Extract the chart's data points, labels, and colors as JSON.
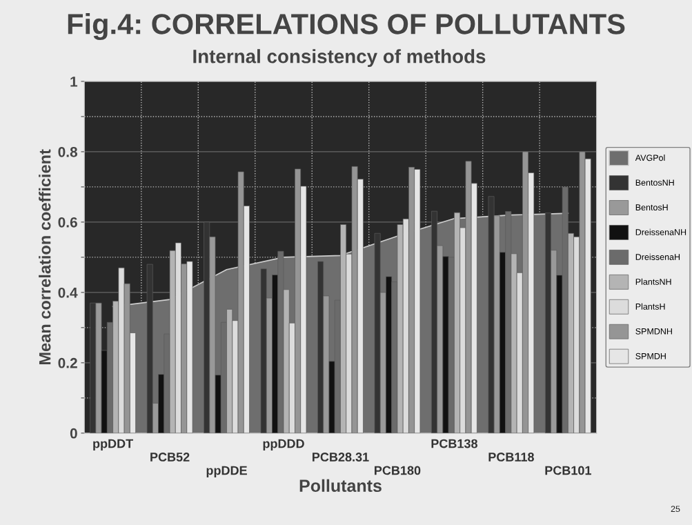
{
  "chart_data": {
    "type": "bar",
    "title": "Fig.4: CORRELATIONS OF POLLUTANTS",
    "subtitle": "Internal consistency of methods",
    "xlabel": "Pollutants",
    "ylabel": "Mean correlation coefficient",
    "categories": [
      "ppDDT",
      "PCB52",
      "ppDDE",
      "ppDDD",
      "PCB28.31",
      "PCB180",
      "PCB138",
      "PCB118",
      "PCB101"
    ],
    "series": [
      {
        "name": "AVGPol",
        "type": "area",
        "color": "#6e6e6e",
        "values": [
          0.36,
          0.38,
          0.465,
          0.5,
          0.505,
          0.56,
          0.61,
          0.62,
          0.625
        ]
      },
      {
        "name": "BentosNH",
        "color": "#333333",
        "values": [
          0.37,
          0.48,
          0.6,
          0.467,
          0.488,
          0.568,
          0.631,
          0.673,
          0.626
        ]
      },
      {
        "name": "BentosH",
        "color": "#999999",
        "values": [
          0.37,
          0.085,
          0.558,
          0.384,
          0.39,
          0.4,
          0.533,
          0.618,
          0.52
        ]
      },
      {
        "name": "DreissenaNH",
        "color": "#111111",
        "values": [
          0.235,
          0.167,
          0.165,
          0.45,
          0.204,
          0.445,
          0.502,
          0.514,
          0.449
        ]
      },
      {
        "name": "DreissenaH",
        "color": "#6b6b6b",
        "values": [
          0.315,
          0.282,
          0.315,
          0.517,
          0.378,
          0.43,
          0.5,
          0.63,
          0.7
        ]
      },
      {
        "name": "PlantsNH",
        "color": "#b4b4b4",
        "values": [
          0.375,
          0.519,
          0.352,
          0.408,
          0.593,
          0.593,
          0.627,
          0.51,
          0.568
        ]
      },
      {
        "name": "PlantsH",
        "color": "#dcdcdc",
        "values": [
          0.47,
          0.541,
          0.32,
          0.313,
          0.509,
          0.609,
          0.584,
          0.456,
          0.558
        ]
      },
      {
        "name": "SPMDNH",
        "color": "#959595",
        "values": [
          0.425,
          0.481,
          0.743,
          0.751,
          0.758,
          0.756,
          0.773,
          0.8,
          0.8
        ]
      },
      {
        "name": "SPMDH",
        "color": "#e6e6e6",
        "values": [
          0.285,
          0.488,
          0.646,
          0.702,
          0.722,
          0.75,
          0.71,
          0.74,
          0.78
        ]
      }
    ],
    "ylim": [
      0,
      1
    ],
    "yticks": [
      0,
      {
        "value": 0.1,
        "label": null
      },
      0.2,
      {
        "value": 0.3,
        "label": null
      },
      0.4,
      {
        "value": 0.5,
        "label": null
      },
      0.6,
      {
        "value": 0.7,
        "label": null
      },
      0.8,
      {
        "value": 0.9,
        "label": null
      },
      1
    ],
    "grid": true,
    "legend": "right",
    "annotations": [
      "25"
    ]
  }
}
